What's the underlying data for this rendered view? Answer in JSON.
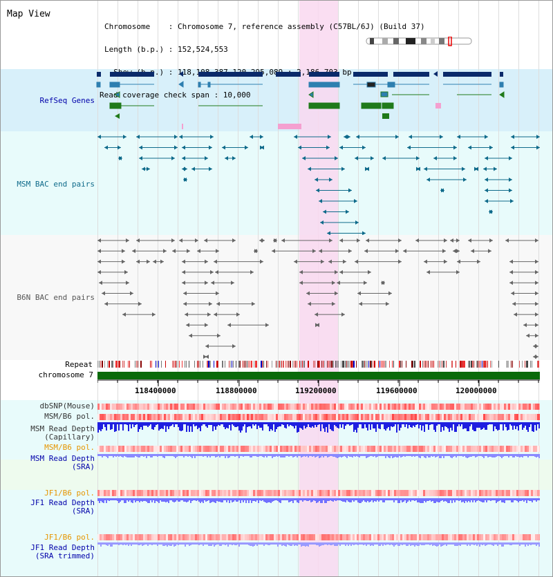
{
  "header": {
    "title": "Map View",
    "lines": [
      "Chromosome    : Chromosome 7, reference assembly (C57BL/6J) (Build 37)",
      "Length (b.p.) : 152,524,553",
      "  Show (b.p.) : 118,108,387-120,295,089 : 2,186,703 bp",
      "Read coverage check span : 10,000"
    ]
  },
  "tracks": {
    "refseq": "RefSeq Genes",
    "msm_bac": "MSM BAC end pairs",
    "b6n_bac": "B6N BAC end pairs",
    "repeat": "Repeat",
    "chromosome": "chromosome 7",
    "dbsnp": "dbSNP(Mouse)",
    "msm_b6_pol_1": "MSM/B6 pol.",
    "msm_depth_cap": "MSM Read Depth\n(Capillary)",
    "msm_b6_pol_2": "MSM/B6 pol.",
    "msm_depth_sra": "MSM Read Depth\n(SRA)",
    "jf1_b6_pol_1": "JF1/B6 pol.",
    "jf1_depth_sra": "JF1 Read Depth\n(SRA)",
    "jf1_b6_pol_2": "JF1/B6 pol.",
    "jf1_depth_trim": "JF1 Read Depth\n(SRA trimmed)"
  },
  "axis": {
    "ticks": [
      "118400000",
      "118800000",
      "119200000",
      "119600000",
      "120000000"
    ]
  },
  "colors": {
    "refseq_bg": "#d8f0fa",
    "msm_bg": "#e8fbfb",
    "b6n_bg": "#f8f8f8",
    "highlight": "#f9d8f0",
    "gene_dark": "#0a2a6a",
    "gene_mid": "#2e7fb0",
    "gene_green": "#1f7a1a",
    "msm_bac": "#0e6a8a",
    "b6n_bac": "#666666",
    "chrom_bar": "#0a6a0a",
    "depth_blue": "#1f1fe0",
    "depth_lightblue": "#8a8aff",
    "label_blue": "#0000aa",
    "label_orange": "#e69500"
  }
}
